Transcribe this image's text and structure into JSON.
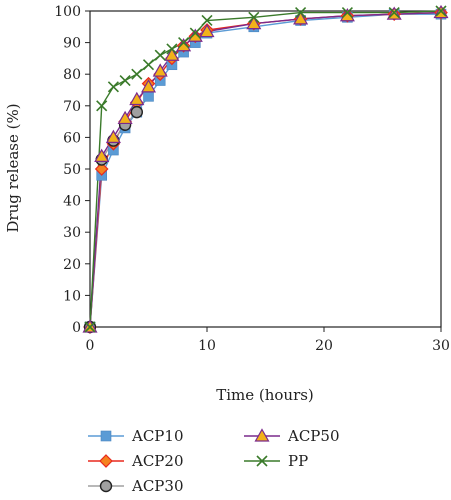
{
  "chart_data": {
    "type": "line",
    "title": "",
    "xlabel": "Time (hours)",
    "ylabel": "Drug release (%)",
    "xlim": [
      0,
      30
    ],
    "ylim": [
      0,
      100
    ],
    "xticks": [
      0,
      10,
      20,
      30
    ],
    "yticks": [
      0,
      10,
      20,
      30,
      40,
      50,
      60,
      70,
      80,
      90,
      100
    ],
    "grid": false,
    "legend_placement": "bottom",
    "series": [
      {
        "name": "ACP10",
        "color": "#5b9bd5",
        "marker": "square",
        "points": [
          [
            0,
            0
          ],
          [
            1,
            48
          ],
          [
            2,
            56
          ],
          [
            3,
            63
          ],
          [
            4,
            68
          ],
          [
            5,
            73
          ],
          [
            6,
            78
          ],
          [
            7,
            83
          ],
          [
            8,
            87
          ],
          [
            9,
            90
          ],
          [
            10,
            93
          ],
          [
            14,
            95
          ],
          [
            18,
            97
          ],
          [
            22,
            98
          ],
          [
            26,
            99
          ],
          [
            30,
            99
          ]
        ]
      },
      {
        "name": "ACP20",
        "color": "#e8281e",
        "marker": "diamond",
        "points": [
          [
            0,
            0
          ],
          [
            1,
            50
          ],
          [
            2,
            58
          ],
          [
            3,
            65
          ],
          [
            4,
            71
          ],
          [
            5,
            77
          ],
          [
            6,
            80
          ],
          [
            7,
            85
          ],
          [
            8,
            89
          ],
          [
            9,
            92
          ],
          [
            10,
            94
          ],
          [
            14,
            96
          ],
          [
            18,
            97.5
          ],
          [
            22,
            98.5
          ],
          [
            26,
            99
          ],
          [
            30,
            99.5
          ]
        ]
      },
      {
        "name": "ACP30",
        "color": "#a0a0a0",
        "marker": "circle",
        "points": [
          [
            0,
            0
          ],
          [
            1,
            53
          ],
          [
            2,
            59
          ],
          [
            3,
            64
          ],
          [
            4,
            68
          ]
        ]
      },
      {
        "name": "ACP50",
        "color": "#7a2a8c",
        "marker": "triangle",
        "points": [
          [
            0,
            0
          ],
          [
            1,
            54
          ],
          [
            2,
            60
          ],
          [
            3,
            66
          ],
          [
            4,
            72
          ],
          [
            5,
            76
          ],
          [
            6,
            81
          ],
          [
            7,
            86
          ],
          [
            8,
            89
          ],
          [
            9,
            92
          ],
          [
            10,
            93.5
          ],
          [
            14,
            96
          ],
          [
            18,
            97.5
          ],
          [
            22,
            98.5
          ],
          [
            26,
            99
          ],
          [
            30,
            99.5
          ]
        ]
      },
      {
        "name": "PP",
        "color": "#3a7a2a",
        "marker": "x",
        "points": [
          [
            0,
            0
          ],
          [
            1,
            70
          ],
          [
            2,
            76
          ],
          [
            3,
            78
          ],
          [
            4,
            80
          ],
          [
            5,
            83
          ],
          [
            6,
            86
          ],
          [
            7,
            88
          ],
          [
            8,
            90
          ],
          [
            9,
            93
          ],
          [
            10,
            97
          ],
          [
            14,
            98
          ],
          [
            18,
            99.5
          ],
          [
            22,
            99.5
          ],
          [
            26,
            99.5
          ],
          [
            30,
            100
          ]
        ]
      }
    ]
  }
}
